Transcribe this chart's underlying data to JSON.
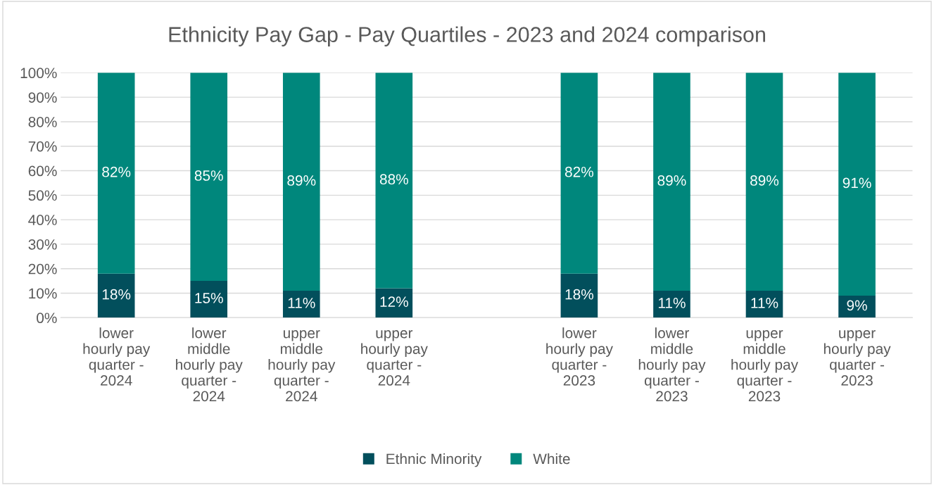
{
  "chart_data": {
    "type": "bar",
    "title": "Ethnicity Pay Gap - Pay Quartiles - 2023 and 2024 comparison",
    "categories": [
      "lower hourly pay quarter - 2024",
      "lower middle hourly pay quarter - 2024",
      "upper middle hourly pay quarter - 2024",
      "upper hourly pay quarter - 2024",
      null,
      "lower hourly pay quarter - 2023",
      "lower middle hourly pay quarter - 2023",
      "upper middle hourly pay quarter - 2023",
      "upper hourly pay quarter - 2023"
    ],
    "stacked": true,
    "series": [
      {
        "name": "Ethnic Minority",
        "color": "#024f5c",
        "values": [
          18,
          15,
          11,
          12,
          null,
          18,
          11,
          11,
          9
        ],
        "value_labels": [
          "18%",
          "15%",
          "11%",
          "12%",
          null,
          "18%",
          "11%",
          "11%",
          "9%"
        ]
      },
      {
        "name": "White",
        "color": "#00877c",
        "values": [
          82,
          85,
          89,
          88,
          null,
          82,
          89,
          89,
          91
        ],
        "value_labels": [
          "82%",
          "85%",
          "89%",
          "88%",
          null,
          "82%",
          "89%",
          "89%",
          "91%"
        ]
      }
    ],
    "ylim": [
      0,
      100
    ],
    "yticks": [
      {
        "value": 0,
        "label": "0%"
      },
      {
        "value": 10,
        "label": "10%"
      },
      {
        "value": 20,
        "label": "20%"
      },
      {
        "value": 30,
        "label": "30%"
      },
      {
        "value": 40,
        "label": "40%"
      },
      {
        "value": 50,
        "label": "50%"
      },
      {
        "value": 60,
        "label": "60%"
      },
      {
        "value": 70,
        "label": "70%"
      },
      {
        "value": 80,
        "label": "80%"
      },
      {
        "value": 90,
        "label": "90%"
      },
      {
        "value": 100,
        "label": "100%"
      }
    ],
    "grid": "y",
    "legend": "bottom"
  }
}
